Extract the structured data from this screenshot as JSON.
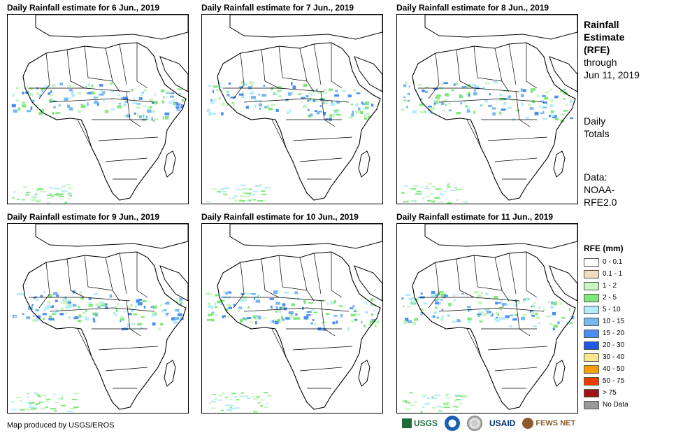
{
  "panels": [
    {
      "title": "Daily Rainfall estimate for 6 Jun., 2019"
    },
    {
      "title": "Daily Rainfall estimate for 7 Jun., 2019"
    },
    {
      "title": "Daily Rainfall estimate for 8 Jun., 2019"
    },
    {
      "title": "Daily Rainfall estimate for 9 Jun., 2019"
    },
    {
      "title": "Daily Rainfall estimate for 10 Jun., 2019"
    },
    {
      "title": "Daily Rainfall estimate for 11 Jun., 2019"
    }
  ],
  "side": {
    "title_line1": "Rainfall",
    "title_line2": "Estimate",
    "title_line3": "(RFE)",
    "through": "through",
    "date": "Jun 11, 2019",
    "daily1": "Daily",
    "daily2": "Totals",
    "data1": "Data:",
    "data2": "NOAA-",
    "data3": "RFE2.0"
  },
  "legend": {
    "title": "RFE (mm)",
    "items": [
      {
        "label": "0 - 0.1",
        "color": "#ffffff"
      },
      {
        "label": "0.1 - 1",
        "color": "#f0dcbe"
      },
      {
        "label": "1 - 2",
        "color": "#c8f5c0"
      },
      {
        "label": "2 - 5",
        "color": "#7ee87a"
      },
      {
        "label": "5 - 10",
        "color": "#b4ecf8"
      },
      {
        "label": "10 - 15",
        "color": "#78b8f0"
      },
      {
        "label": "15 - 20",
        "color": "#4c8ef0"
      },
      {
        "label": "20 - 30",
        "color": "#1e5ae6"
      },
      {
        "label": "30 - 40",
        "color": "#fae68c"
      },
      {
        "label": "40 - 50",
        "color": "#f5a000"
      },
      {
        "label": "50 - 75",
        "color": "#f03c00"
      },
      {
        "label": "> 75",
        "color": "#a01414"
      },
      {
        "label": "No Data",
        "color": "#999999"
      }
    ]
  },
  "credit": "Map produced by USGS/EROS",
  "logos": {
    "usgs": "USGS",
    "usaid": "USAID",
    "fews": "FEWS NET"
  }
}
